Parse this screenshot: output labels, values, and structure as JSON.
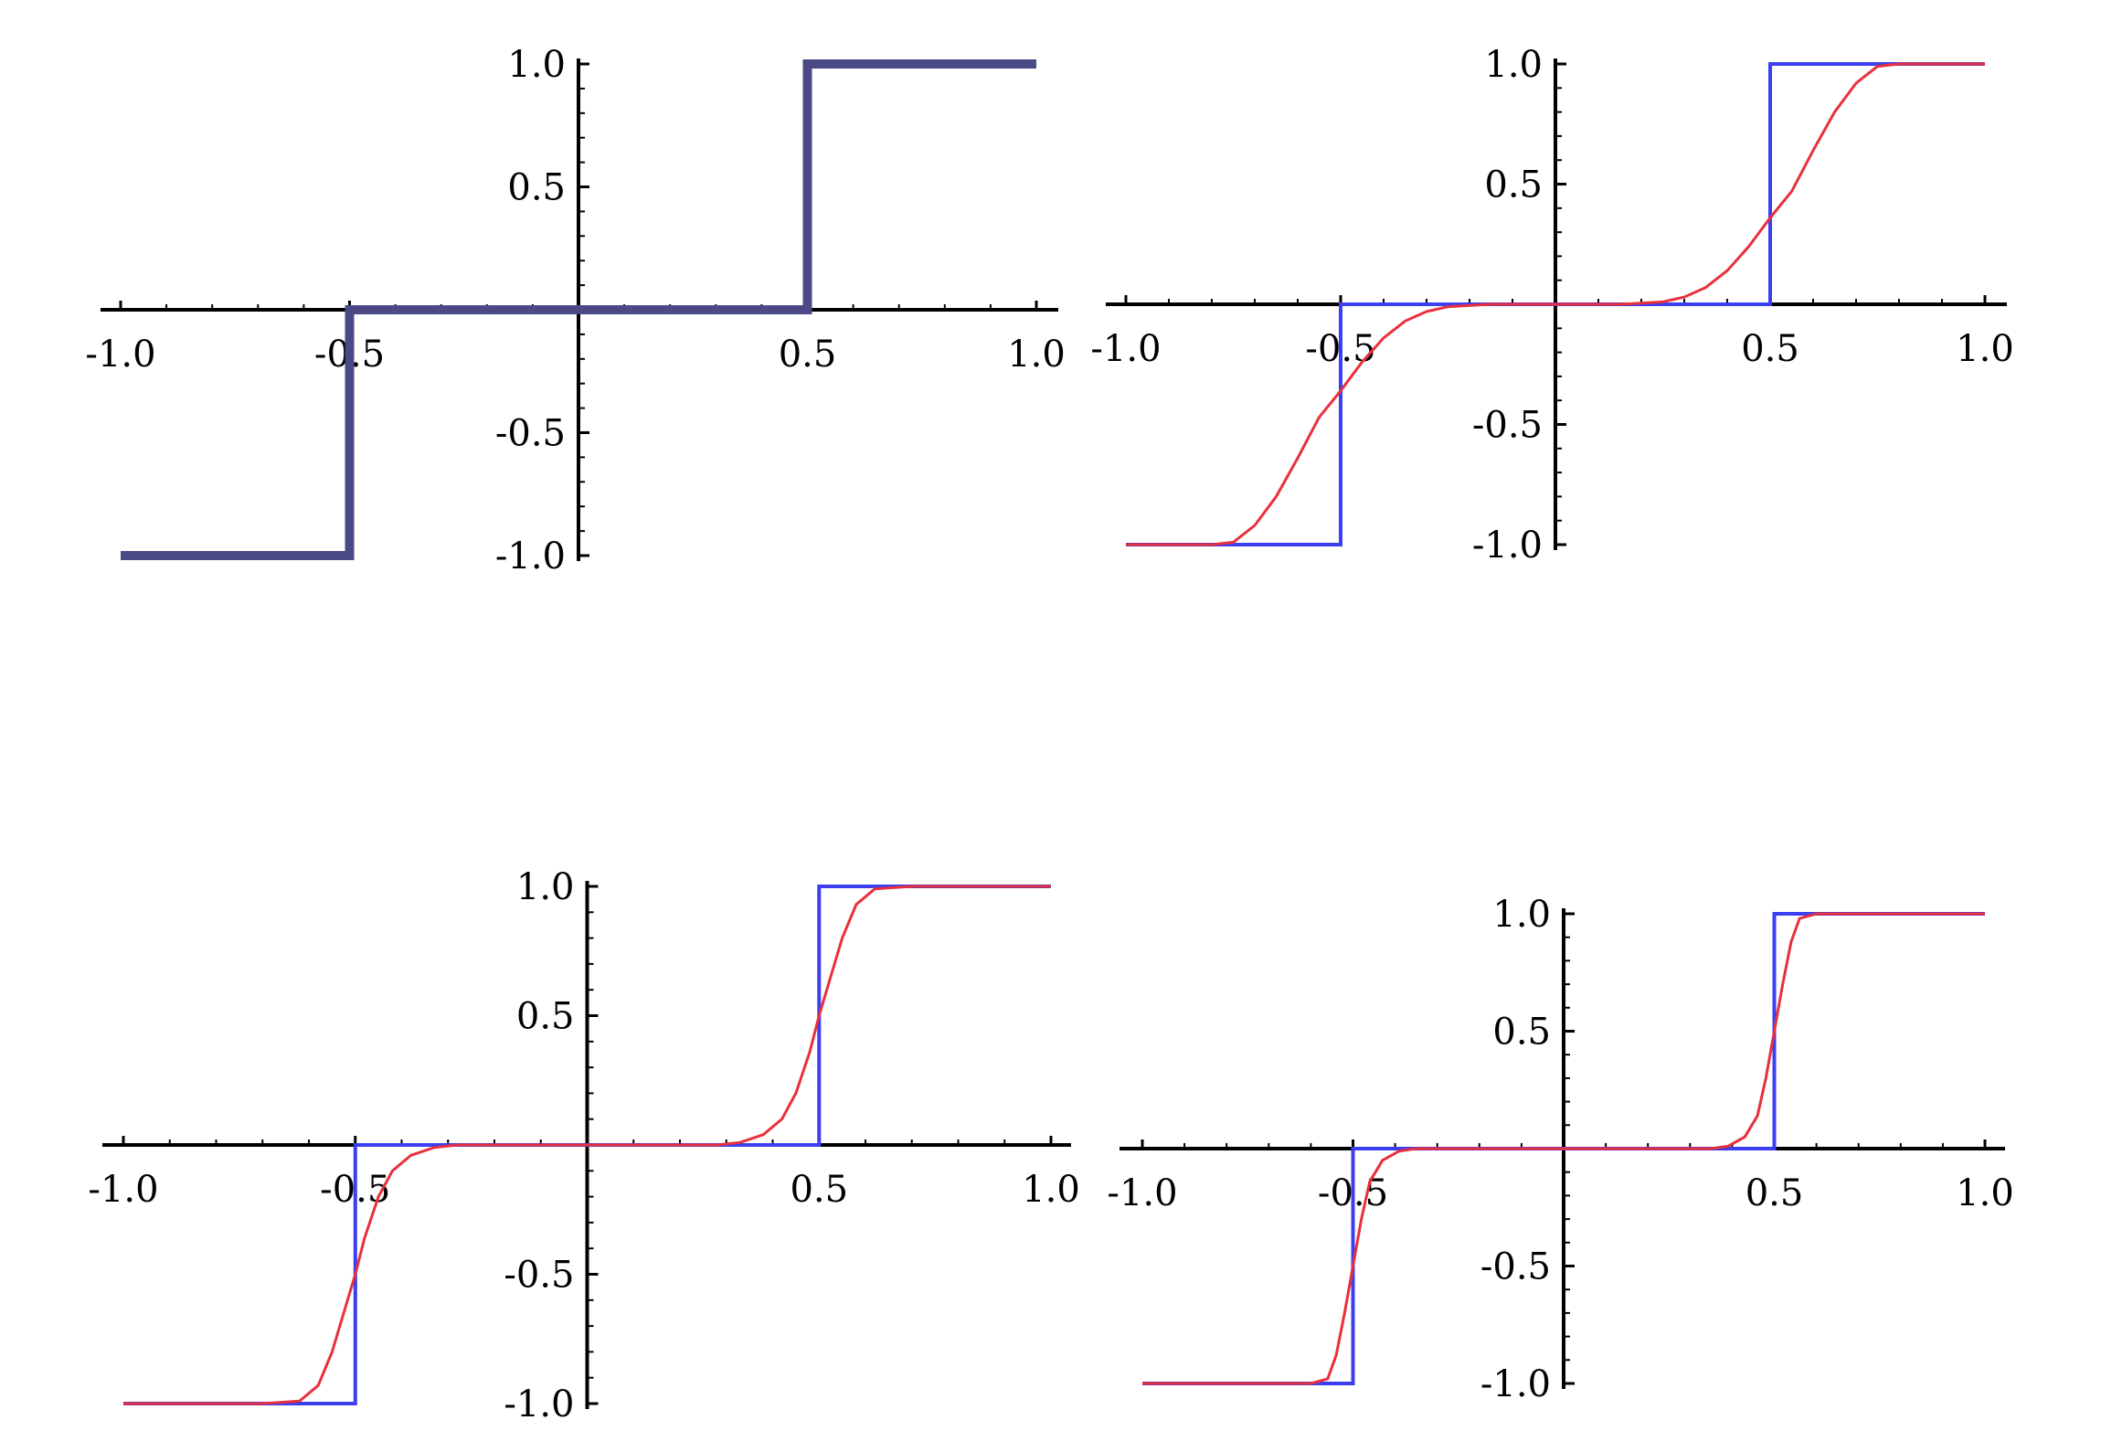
{
  "colors": {
    "step": "#3b3ff0",
    "step_thick": "#4b4a86",
    "smooth": "#e8303c",
    "axis": "#000000"
  },
  "chart_data": [
    {
      "type": "line",
      "position": "top-left",
      "xlim": [
        -1.0,
        1.0
      ],
      "ylim": [
        -1.0,
        1.0
      ],
      "x_ticks": [
        "-1.0",
        "-0.5",
        "0.5",
        "1.0"
      ],
      "y_ticks": [
        "1.0",
        "0.5",
        "-0.5",
        "-1.0"
      ],
      "grid": false,
      "series": [
        {
          "style": "step_thick",
          "points": [
            [
              -1.0,
              -1.0
            ],
            [
              -0.5,
              -1.0
            ],
            [
              -0.5,
              0.0
            ],
            [
              0.5,
              0.0
            ],
            [
              0.5,
              1.0
            ],
            [
              1.0,
              1.0
            ]
          ]
        }
      ]
    },
    {
      "type": "line",
      "position": "top-right",
      "xlim": [
        -1.0,
        1.0
      ],
      "ylim": [
        -1.0,
        1.0
      ],
      "x_ticks": [
        "-1.0",
        "-0.5",
        "0.5",
        "1.0"
      ],
      "y_ticks": [
        "1.0",
        "0.5",
        "-0.5",
        "-1.0"
      ],
      "grid": false,
      "series": [
        {
          "style": "step",
          "points": [
            [
              -1.0,
              -1.0
            ],
            [
              -0.5,
              -1.0
            ],
            [
              -0.5,
              0.0
            ],
            [
              0.5,
              0.0
            ],
            [
              0.5,
              1.0
            ],
            [
              1.0,
              1.0
            ]
          ]
        },
        {
          "style": "smooth",
          "points": [
            [
              -1.0,
              -1.0
            ],
            [
              -0.9,
              -1.0
            ],
            [
              -0.8,
              -1.0
            ],
            [
              -0.75,
              -0.99
            ],
            [
              -0.7,
              -0.92
            ],
            [
              -0.65,
              -0.8
            ],
            [
              -0.6,
              -0.64
            ],
            [
              -0.55,
              -0.47
            ],
            [
              -0.5,
              -0.36
            ],
            [
              -0.45,
              -0.24
            ],
            [
              -0.4,
              -0.14
            ],
            [
              -0.35,
              -0.07
            ],
            [
              -0.3,
              -0.03
            ],
            [
              -0.25,
              -0.01
            ],
            [
              -0.15,
              0.0
            ],
            [
              0.15,
              0.0
            ],
            [
              0.25,
              0.01
            ],
            [
              0.3,
              0.03
            ],
            [
              0.35,
              0.07
            ],
            [
              0.4,
              0.14
            ],
            [
              0.45,
              0.24
            ],
            [
              0.5,
              0.36
            ],
            [
              0.55,
              0.47
            ],
            [
              0.6,
              0.64
            ],
            [
              0.65,
              0.8
            ],
            [
              0.7,
              0.92
            ],
            [
              0.75,
              0.99
            ],
            [
              0.8,
              1.0
            ],
            [
              0.9,
              1.0
            ],
            [
              1.0,
              1.0
            ]
          ]
        }
      ]
    },
    {
      "type": "line",
      "position": "bottom-left",
      "xlim": [
        -1.0,
        1.0
      ],
      "ylim": [
        -1.0,
        1.0
      ],
      "x_ticks": [
        "-1.0",
        "-0.5",
        "0.5",
        "1.0"
      ],
      "y_ticks": [
        "1.0",
        "0.5",
        "-0.5",
        "-1.0"
      ],
      "grid": false,
      "series": [
        {
          "style": "step",
          "points": [
            [
              -1.0,
              -1.0
            ],
            [
              -0.5,
              -1.0
            ],
            [
              -0.5,
              0.0
            ],
            [
              0.5,
              0.0
            ],
            [
              0.5,
              1.0
            ],
            [
              1.0,
              1.0
            ]
          ]
        },
        {
          "style": "smooth",
          "points": [
            [
              -1.0,
              -1.0
            ],
            [
              -0.7,
              -1.0
            ],
            [
              -0.62,
              -0.99
            ],
            [
              -0.58,
              -0.93
            ],
            [
              -0.55,
              -0.8
            ],
            [
              -0.52,
              -0.62
            ],
            [
              -0.5,
              -0.5
            ],
            [
              -0.48,
              -0.36
            ],
            [
              -0.45,
              -0.2
            ],
            [
              -0.42,
              -0.1
            ],
            [
              -0.38,
              -0.04
            ],
            [
              -0.33,
              -0.01
            ],
            [
              -0.28,
              0.0
            ],
            [
              0.28,
              0.0
            ],
            [
              0.33,
              0.01
            ],
            [
              0.38,
              0.04
            ],
            [
              0.42,
              0.1
            ],
            [
              0.45,
              0.2
            ],
            [
              0.48,
              0.36
            ],
            [
              0.5,
              0.5
            ],
            [
              0.52,
              0.62
            ],
            [
              0.55,
              0.8
            ],
            [
              0.58,
              0.93
            ],
            [
              0.62,
              0.99
            ],
            [
              0.7,
              1.0
            ],
            [
              1.0,
              1.0
            ]
          ]
        }
      ]
    },
    {
      "type": "line",
      "position": "bottom-right",
      "xlim": [
        -1.0,
        1.0
      ],
      "ylim": [
        -1.0,
        1.0
      ],
      "x_ticks": [
        "-1.0",
        "-0.5",
        "0.5",
        "1.0"
      ],
      "y_ticks": [
        "1.0",
        "0.5",
        "-0.5",
        "-1.0"
      ],
      "grid": false,
      "series": [
        {
          "style": "step",
          "points": [
            [
              -1.0,
              -1.0
            ],
            [
              -0.5,
              -1.0
            ],
            [
              -0.5,
              0.0
            ],
            [
              0.5,
              0.0
            ],
            [
              0.5,
              1.0
            ],
            [
              1.0,
              1.0
            ]
          ]
        },
        {
          "style": "smooth",
          "points": [
            [
              -1.0,
              -1.0
            ],
            [
              -0.6,
              -1.0
            ],
            [
              -0.56,
              -0.98
            ],
            [
              -0.54,
              -0.88
            ],
            [
              -0.52,
              -0.7
            ],
            [
              -0.5,
              -0.5
            ],
            [
              -0.48,
              -0.3
            ],
            [
              -0.46,
              -0.14
            ],
            [
              -0.43,
              -0.05
            ],
            [
              -0.39,
              -0.01
            ],
            [
              -0.35,
              0.0
            ],
            [
              0.35,
              0.0
            ],
            [
              0.39,
              0.01
            ],
            [
              0.43,
              0.05
            ],
            [
              0.46,
              0.14
            ],
            [
              0.48,
              0.3
            ],
            [
              0.5,
              0.5
            ],
            [
              0.52,
              0.7
            ],
            [
              0.54,
              0.88
            ],
            [
              0.56,
              0.98
            ],
            [
              0.6,
              1.0
            ],
            [
              1.0,
              1.0
            ]
          ]
        }
      ]
    }
  ]
}
